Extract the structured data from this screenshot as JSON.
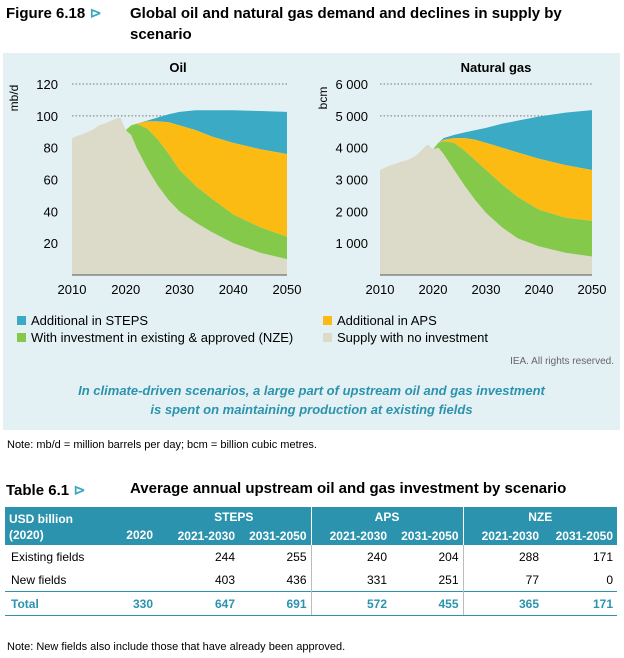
{
  "figure": {
    "label": "Figure 6.18",
    "arrow": "⊳",
    "title": "Global oil and natural gas demand and declines in supply by scenario"
  },
  "colors": {
    "steps": "#3aaac5",
    "aps": "#fcbb13",
    "nze": "#85c94a",
    "no_investment": "#dcdbc9",
    "accent": "#2b93ad"
  },
  "chart_data": [
    {
      "type": "area",
      "title": "Oil",
      "ylabel": "mb/d",
      "xlabel": "",
      "x_ticks": [
        "2010",
        "2020",
        "2030",
        "2040",
        "2050"
      ],
      "y_ticks": [
        "20",
        "40",
        "60",
        "80",
        "100",
        "120"
      ],
      "ylim": [
        0,
        120
      ],
      "xlim": [
        2010,
        2050
      ],
      "gridlines": [
        100,
        120
      ],
      "series": [
        {
          "name": "Supply with no investment",
          "color": "no_investment",
          "x": [
            2010,
            2011,
            2012,
            2013,
            2014,
            2015,
            2016,
            2017,
            2018,
            2019,
            2020,
            2021,
            2022,
            2024,
            2026,
            2028,
            2030,
            2033,
            2036,
            2040,
            2045,
            2050
          ],
          "y": [
            86,
            87.5,
            88.5,
            90,
            91.5,
            94,
            95,
            96.5,
            98,
            99,
            91,
            88,
            80,
            67,
            56,
            47,
            40,
            33,
            27,
            20,
            14,
            10
          ]
        },
        {
          "name": "With investment in existing & approved (NZE)",
          "color": "nze",
          "x": [
            2020,
            2021,
            2022,
            2024,
            2026,
            2028,
            2030,
            2033,
            2036,
            2040,
            2045,
            2050
          ],
          "y": [
            91,
            94,
            95,
            92,
            85,
            76,
            66,
            56,
            48,
            38,
            30,
            24
          ]
        },
        {
          "name": "Additional in APS",
          "color": "aps",
          "x": [
            2020,
            2021,
            2022,
            2024,
            2026,
            2028,
            2030,
            2033,
            2036,
            2040,
            2045,
            2050
          ],
          "y": [
            91,
            94,
            95,
            96.5,
            96.5,
            96,
            94,
            91,
            87,
            83,
            79,
            76
          ]
        },
        {
          "name": "Additional in STEPS",
          "color": "steps",
          "x": [
            2020,
            2021,
            2022,
            2024,
            2026,
            2028,
            2030,
            2033,
            2036,
            2040,
            2045,
            2050
          ],
          "y": [
            91,
            94,
            95,
            97,
            99,
            101,
            102.5,
            103.5,
            103.5,
            103.5,
            103,
            102.5
          ]
        }
      ]
    },
    {
      "type": "area",
      "title": "Natural gas",
      "ylabel": "bcm",
      "xlabel": "",
      "x_ticks": [
        "2010",
        "2020",
        "2030",
        "2040",
        "2050"
      ],
      "y_ticks": [
        "1 000",
        "2 000",
        "3 000",
        "4 000",
        "5 000",
        "6 000"
      ],
      "ylim": [
        0,
        6000
      ],
      "xlim": [
        2010,
        2050
      ],
      "gridlines": [
        5000,
        6000
      ],
      "series": [
        {
          "name": "Supply with no investment",
          "color": "no_investment",
          "x": [
            2010,
            2011,
            2012,
            2013,
            2014,
            2015,
            2016,
            2017,
            2018,
            2019,
            2020,
            2021,
            2022,
            2024,
            2026,
            2028,
            2030,
            2033,
            2036,
            2040,
            2045,
            2050
          ],
          "y": [
            3300,
            3380,
            3450,
            3500,
            3560,
            3600,
            3680,
            3780,
            3950,
            4100,
            3950,
            4000,
            3800,
            3300,
            2800,
            2350,
            1950,
            1500,
            1150,
            900,
            700,
            580
          ]
        },
        {
          "name": "With investment in existing & approved (NZE)",
          "color": "nze",
          "x": [
            2020,
            2021,
            2022,
            2024,
            2026,
            2028,
            2030,
            2033,
            2036,
            2040,
            2045,
            2050
          ],
          "y": [
            3950,
            4150,
            4200,
            4150,
            3900,
            3600,
            3300,
            2850,
            2450,
            2050,
            1800,
            1700
          ]
        },
        {
          "name": "Additional in APS",
          "color": "aps",
          "x": [
            2020,
            2021,
            2022,
            2024,
            2026,
            2028,
            2030,
            2033,
            2036,
            2040,
            2045,
            2050
          ],
          "y": [
            3950,
            4150,
            4250,
            4300,
            4300,
            4250,
            4150,
            4000,
            3850,
            3650,
            3450,
            3300
          ]
        },
        {
          "name": "Additional in STEPS",
          "color": "steps",
          "x": [
            2020,
            2021,
            2022,
            2024,
            2026,
            2028,
            2030,
            2033,
            2036,
            2040,
            2045,
            2050
          ],
          "y": [
            3950,
            4150,
            4300,
            4400,
            4480,
            4550,
            4620,
            4750,
            4850,
            4980,
            5100,
            5180
          ]
        }
      ]
    }
  ],
  "legend": [
    {
      "label": "Additional in STEPS",
      "color": "steps"
    },
    {
      "label": "Additional in APS",
      "color": "aps"
    },
    {
      "label": "With investment in existing & approved (NZE)",
      "color": "nze"
    },
    {
      "label": "Supply with no investment",
      "color": "no_investment"
    }
  ],
  "credit": "IEA. All rights reserved.",
  "caption_lines": [
    "In climate-driven scenarios, a large part of upstream oil and gas investment",
    "is spent on maintaining production at existing fields"
  ],
  "figure_note": "Note:  mb/d = million barrels per day; bcm = billion cubic metres.",
  "table": {
    "label": "Table 6.1",
    "arrow": "⊳",
    "title": "Average annual upstream oil and gas investment by scenario",
    "corner": "USD billion (2020)",
    "groups": [
      "STEPS",
      "APS",
      "NZE"
    ],
    "year_2020": "2020",
    "periods": [
      "2021-2030",
      "2031-2050",
      "2021-2030",
      "2031-2050",
      "2021-2030",
      "2031-2050"
    ],
    "rows": [
      {
        "name": "Existing fields",
        "v2020": "",
        "values": [
          "244",
          "255",
          "240",
          "204",
          "288",
          "171"
        ]
      },
      {
        "name": "New fields",
        "v2020": "",
        "values": [
          "403",
          "436",
          "331",
          "251",
          "77",
          "0"
        ]
      }
    ],
    "total": {
      "name": "Total",
      "v2020": "330",
      "values": [
        "647",
        "691",
        "572",
        "455",
        "365",
        "171"
      ]
    }
  },
  "table_note": "Note: New fields also include those that have already been approved."
}
